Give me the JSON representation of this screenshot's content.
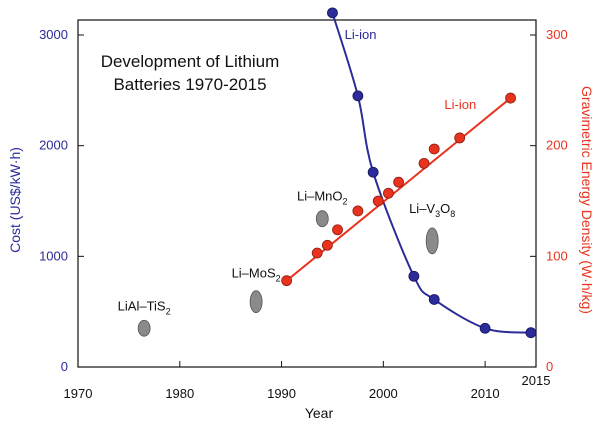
{
  "colors": {
    "cost": "#2b2b9a",
    "energy": "#e8331f",
    "ellipse": "#8a8a8a",
    "axis": "#111111"
  },
  "chart_data": {
    "type": "scatter",
    "title_lines": [
      "Development of Lithium",
      "Batteries 1970-2015"
    ],
    "xlabel": "Year",
    "ylabel_left": "Cost (US$/kW·h)",
    "ylabel_right": "Gravimetric Energy Density (W·h/kg)",
    "xlim": [
      1970,
      2015
    ],
    "ylim_left": [
      0,
      3000
    ],
    "ylim_right": [
      0,
      300
    ],
    "x_ticks": [
      "1970",
      "1980",
      "1990",
      "2000",
      "2010",
      "2015"
    ],
    "y_left_ticks": [
      "0",
      "1000",
      "2000",
      "3000"
    ],
    "y_right_ticks": [
      "0",
      "100",
      "200",
      "300"
    ],
    "grid": false,
    "series": [
      {
        "name": "Li-ion",
        "axis": "left",
        "color_key": "cost",
        "points": [
          [
            1995,
            3200
          ],
          [
            1997.5,
            2450
          ],
          [
            1999,
            1760
          ],
          [
            2003,
            820
          ],
          [
            2005,
            610
          ],
          [
            2010,
            350
          ],
          [
            2014.5,
            310
          ]
        ]
      },
      {
        "name": "Li-ion",
        "axis": "right",
        "color_key": "energy",
        "fit_line": [
          [
            1990.5,
            78
          ],
          [
            2012.5,
            243
          ]
        ],
        "points": [
          [
            1990.5,
            78
          ],
          [
            1993.5,
            103
          ],
          [
            1994.5,
            110
          ],
          [
            1995.5,
            124
          ],
          [
            1997.5,
            141
          ],
          [
            1999.5,
            150
          ],
          [
            2000.5,
            157
          ],
          [
            2001.5,
            167
          ],
          [
            2004,
            184
          ],
          [
            2005,
            197
          ],
          [
            2007.5,
            207
          ],
          [
            2012.5,
            243
          ]
        ]
      }
    ],
    "annotations": [
      {
        "main": "LiAl–TiS",
        "sub": "2",
        "tail": "",
        "x": 1976.5,
        "y": 350
      },
      {
        "main": "Li–MoS",
        "sub": "2",
        "tail": "",
        "x": 1987.5,
        "y": 590
      },
      {
        "main": "Li–MnO",
        "sub": "2",
        "tail": "",
        "x": 1994,
        "y": 1340
      },
      {
        "main": "Li–V",
        "sub": "3",
        "tail": "O",
        "sub2": "8",
        "x": 2004.8,
        "y": 1140
      }
    ]
  }
}
